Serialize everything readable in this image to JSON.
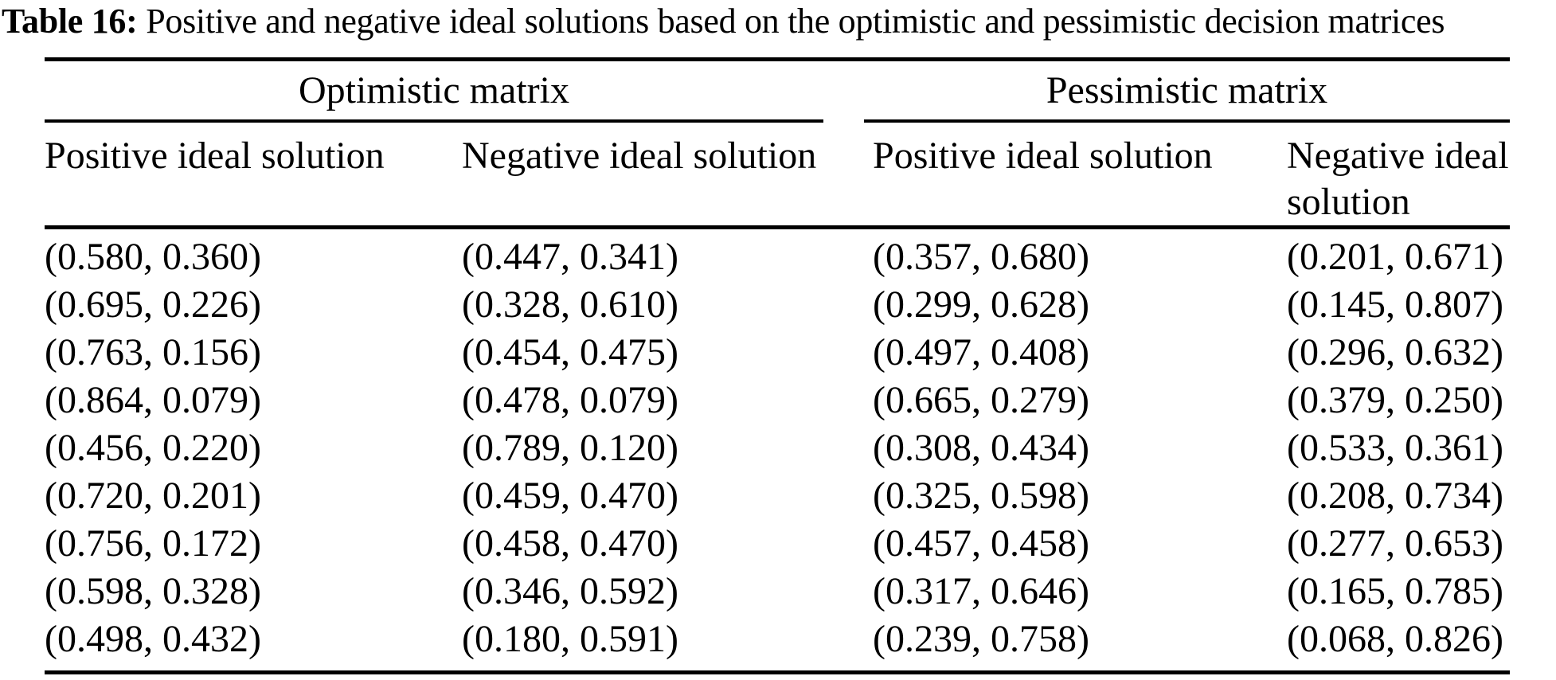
{
  "caption": {
    "label": "Table 16:",
    "text": " Positive and negative ideal solutions based on the optimistic and pessimistic decision matrices"
  },
  "table": {
    "groups": [
      {
        "label": "Optimistic matrix"
      },
      {
        "label": "Pessimistic matrix"
      }
    ],
    "columns": [
      "Positive ideal solution",
      "Negative ideal solution",
      "Positive ideal solution",
      "Negative ideal solution"
    ],
    "rows": [
      [
        "(0.580, 0.360)",
        "(0.447, 0.341)",
        "(0.357, 0.680)",
        "(0.201, 0.671)"
      ],
      [
        "(0.695, 0.226)",
        "(0.328, 0.610)",
        "(0.299, 0.628)",
        "(0.145, 0.807)"
      ],
      [
        "(0.763, 0.156)",
        "(0.454, 0.475)",
        "(0.497, 0.408)",
        "(0.296, 0.632)"
      ],
      [
        "(0.864, 0.079)",
        "(0.478, 0.079)",
        "(0.665, 0.279)",
        "(0.379, 0.250)"
      ],
      [
        "(0.456, 0.220)",
        "(0.789, 0.120)",
        "(0.308, 0.434)",
        "(0.533, 0.361)"
      ],
      [
        "(0.720, 0.201)",
        "(0.459, 0.470)",
        "(0.325, 0.598)",
        "(0.208, 0.734)"
      ],
      [
        "(0.756, 0.172)",
        "(0.458, 0.470)",
        "(0.457, 0.458)",
        "(0.277, 0.653)"
      ],
      [
        "(0.598, 0.328)",
        "(0.346, 0.592)",
        "(0.317, 0.646)",
        "(0.165, 0.785)"
      ],
      [
        "(0.498, 0.432)",
        "(0.180, 0.591)",
        "(0.239, 0.758)",
        "(0.068, 0.826)"
      ]
    ]
  }
}
